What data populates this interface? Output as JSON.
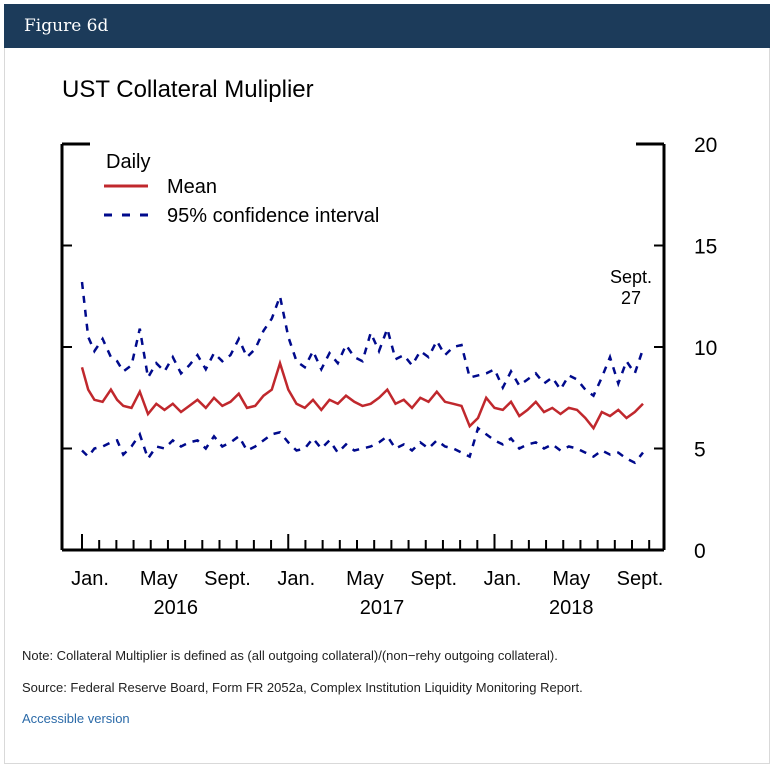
{
  "header": {
    "title": "Figure 6d"
  },
  "chart_data": {
    "type": "line",
    "title": "UST Collateral Muliplier",
    "legend_title": "Daily",
    "legend_placement": "top-left",
    "ylim": [
      0,
      20
    ],
    "y_ticks": [
      "0",
      "5",
      "10",
      "15",
      "20"
    ],
    "x_tick_labels": [
      "Jan.",
      "May",
      "Sept.",
      "Jan.",
      "May",
      "Sept.",
      "Jan.",
      "May",
      "Sept."
    ],
    "x_year_labels": [
      "2016",
      "2017",
      "2018"
    ],
    "annotation": {
      "line1": "Sept.",
      "line2": "27"
    },
    "colors": {
      "mean": "#c0282d",
      "ci": "#000a8c"
    },
    "series": [
      {
        "name": "Mean",
        "style": "solid",
        "x": [
          0,
          0.03,
          0.06,
          0.1,
          0.14,
          0.17,
          0.2,
          0.24,
          0.28,
          0.32,
          0.36,
          0.4,
          0.44,
          0.48,
          0.52,
          0.56,
          0.6,
          0.64,
          0.68,
          0.72,
          0.76,
          0.8,
          0.84,
          0.88,
          0.92,
          0.96,
          1.0,
          1.04,
          1.08,
          1.12,
          1.16,
          1.2,
          1.24,
          1.28,
          1.32,
          1.36,
          1.4,
          1.44,
          1.48,
          1.52,
          1.56,
          1.6,
          1.64,
          1.68,
          1.72,
          1.76,
          1.8,
          1.84,
          1.88,
          1.92,
          1.96,
          2.0,
          2.04,
          2.08,
          2.12,
          2.16,
          2.2,
          2.24,
          2.28,
          2.32,
          2.36,
          2.4,
          2.44,
          2.48,
          2.52,
          2.56,
          2.6,
          2.64,
          2.68,
          2.72
        ],
        "values": [
          9.0,
          7.9,
          7.4,
          7.3,
          7.9,
          7.4,
          7.1,
          7.0,
          7.8,
          6.7,
          7.2,
          6.9,
          7.2,
          6.8,
          7.1,
          7.4,
          7.0,
          7.5,
          7.1,
          7.3,
          7.7,
          7.0,
          7.1,
          7.6,
          7.9,
          9.2,
          7.9,
          7.2,
          7.0,
          7.4,
          6.9,
          7.4,
          7.2,
          7.6,
          7.3,
          7.1,
          7.2,
          7.5,
          7.9,
          7.2,
          7.4,
          7.0,
          7.5,
          7.3,
          7.8,
          7.3,
          7.2,
          7.1,
          6.1,
          6.5,
          7.5,
          7.0,
          6.9,
          7.3,
          6.6,
          6.9,
          7.3,
          6.8,
          7.0,
          6.7,
          7.0,
          6.9,
          6.5,
          6.0,
          6.8,
          6.6,
          6.9,
          6.5,
          6.8,
          7.2
        ]
      },
      {
        "name": "95% confidence interval",
        "style": "dashed",
        "x": [
          0,
          0.03,
          0.06,
          0.1,
          0.14,
          0.17,
          0.2,
          0.24,
          0.28,
          0.32,
          0.36,
          0.4,
          0.44,
          0.48,
          0.52,
          0.56,
          0.6,
          0.64,
          0.68,
          0.72,
          0.76,
          0.8,
          0.84,
          0.88,
          0.92,
          0.96,
          1.0,
          1.04,
          1.08,
          1.12,
          1.16,
          1.2,
          1.24,
          1.28,
          1.32,
          1.36,
          1.4,
          1.44,
          1.48,
          1.52,
          1.56,
          1.6,
          1.64,
          1.68,
          1.72,
          1.76,
          1.8,
          1.84,
          1.88,
          1.92,
          1.96,
          2.0,
          2.04,
          2.08,
          2.12,
          2.16,
          2.2,
          2.24,
          2.28,
          2.32,
          2.36,
          2.4,
          2.44,
          2.48,
          2.52,
          2.56,
          2.6,
          2.64,
          2.68,
          2.72
        ],
        "upper": [
          13.2,
          10.5,
          9.8,
          10.4,
          9.5,
          9.3,
          8.8,
          9.1,
          10.9,
          8.5,
          9.2,
          8.8,
          9.5,
          8.7,
          9.1,
          9.6,
          8.9,
          9.7,
          9.3,
          9.6,
          10.4,
          9.5,
          9.9,
          10.8,
          11.4,
          12.5,
          10.5,
          9.3,
          9.0,
          9.8,
          8.9,
          9.7,
          9.2,
          10.1,
          9.5,
          9.3,
          10.7,
          9.8,
          10.9,
          9.4,
          9.6,
          9.1,
          9.8,
          9.5,
          10.3,
          9.6,
          10.0,
          10.1,
          8.5,
          8.6,
          8.7,
          8.9,
          8.0,
          8.8,
          8.1,
          8.4,
          8.7,
          8.2,
          8.5,
          7.9,
          8.6,
          8.4,
          7.9,
          7.6,
          8.5,
          9.5,
          8.2,
          9.3,
          8.7,
          9.9
        ],
        "lower": [
          4.9,
          4.6,
          5.0,
          5.1,
          5.3,
          5.4,
          4.7,
          5.1,
          5.7,
          4.5,
          5.1,
          5.0,
          5.4,
          5.1,
          5.3,
          5.4,
          5.0,
          5.6,
          5.1,
          5.3,
          5.6,
          4.9,
          5.1,
          5.4,
          5.7,
          5.8,
          5.3,
          4.9,
          5.0,
          5.5,
          5.0,
          5.4,
          4.8,
          5.2,
          4.9,
          5.0,
          5.1,
          5.3,
          5.6,
          5.0,
          5.2,
          4.9,
          5.3,
          5.0,
          5.4,
          5.1,
          5.0,
          4.8,
          4.6,
          6.0,
          5.7,
          5.4,
          5.2,
          5.5,
          5.0,
          5.2,
          5.3,
          5.0,
          5.2,
          4.9,
          5.1,
          5.0,
          4.8,
          4.6,
          4.9,
          4.7,
          4.8,
          4.5,
          4.3,
          4.8
        ]
      }
    ]
  },
  "note": "Note: Collateral Multiplier is defined as (all outgoing collateral)/(non−rehy outgoing collateral).",
  "source": "Source: Federal Reserve Board, Form FR 2052a, Complex Institution Liquidity Monitoring Report.",
  "accessible_link": "Accessible version"
}
